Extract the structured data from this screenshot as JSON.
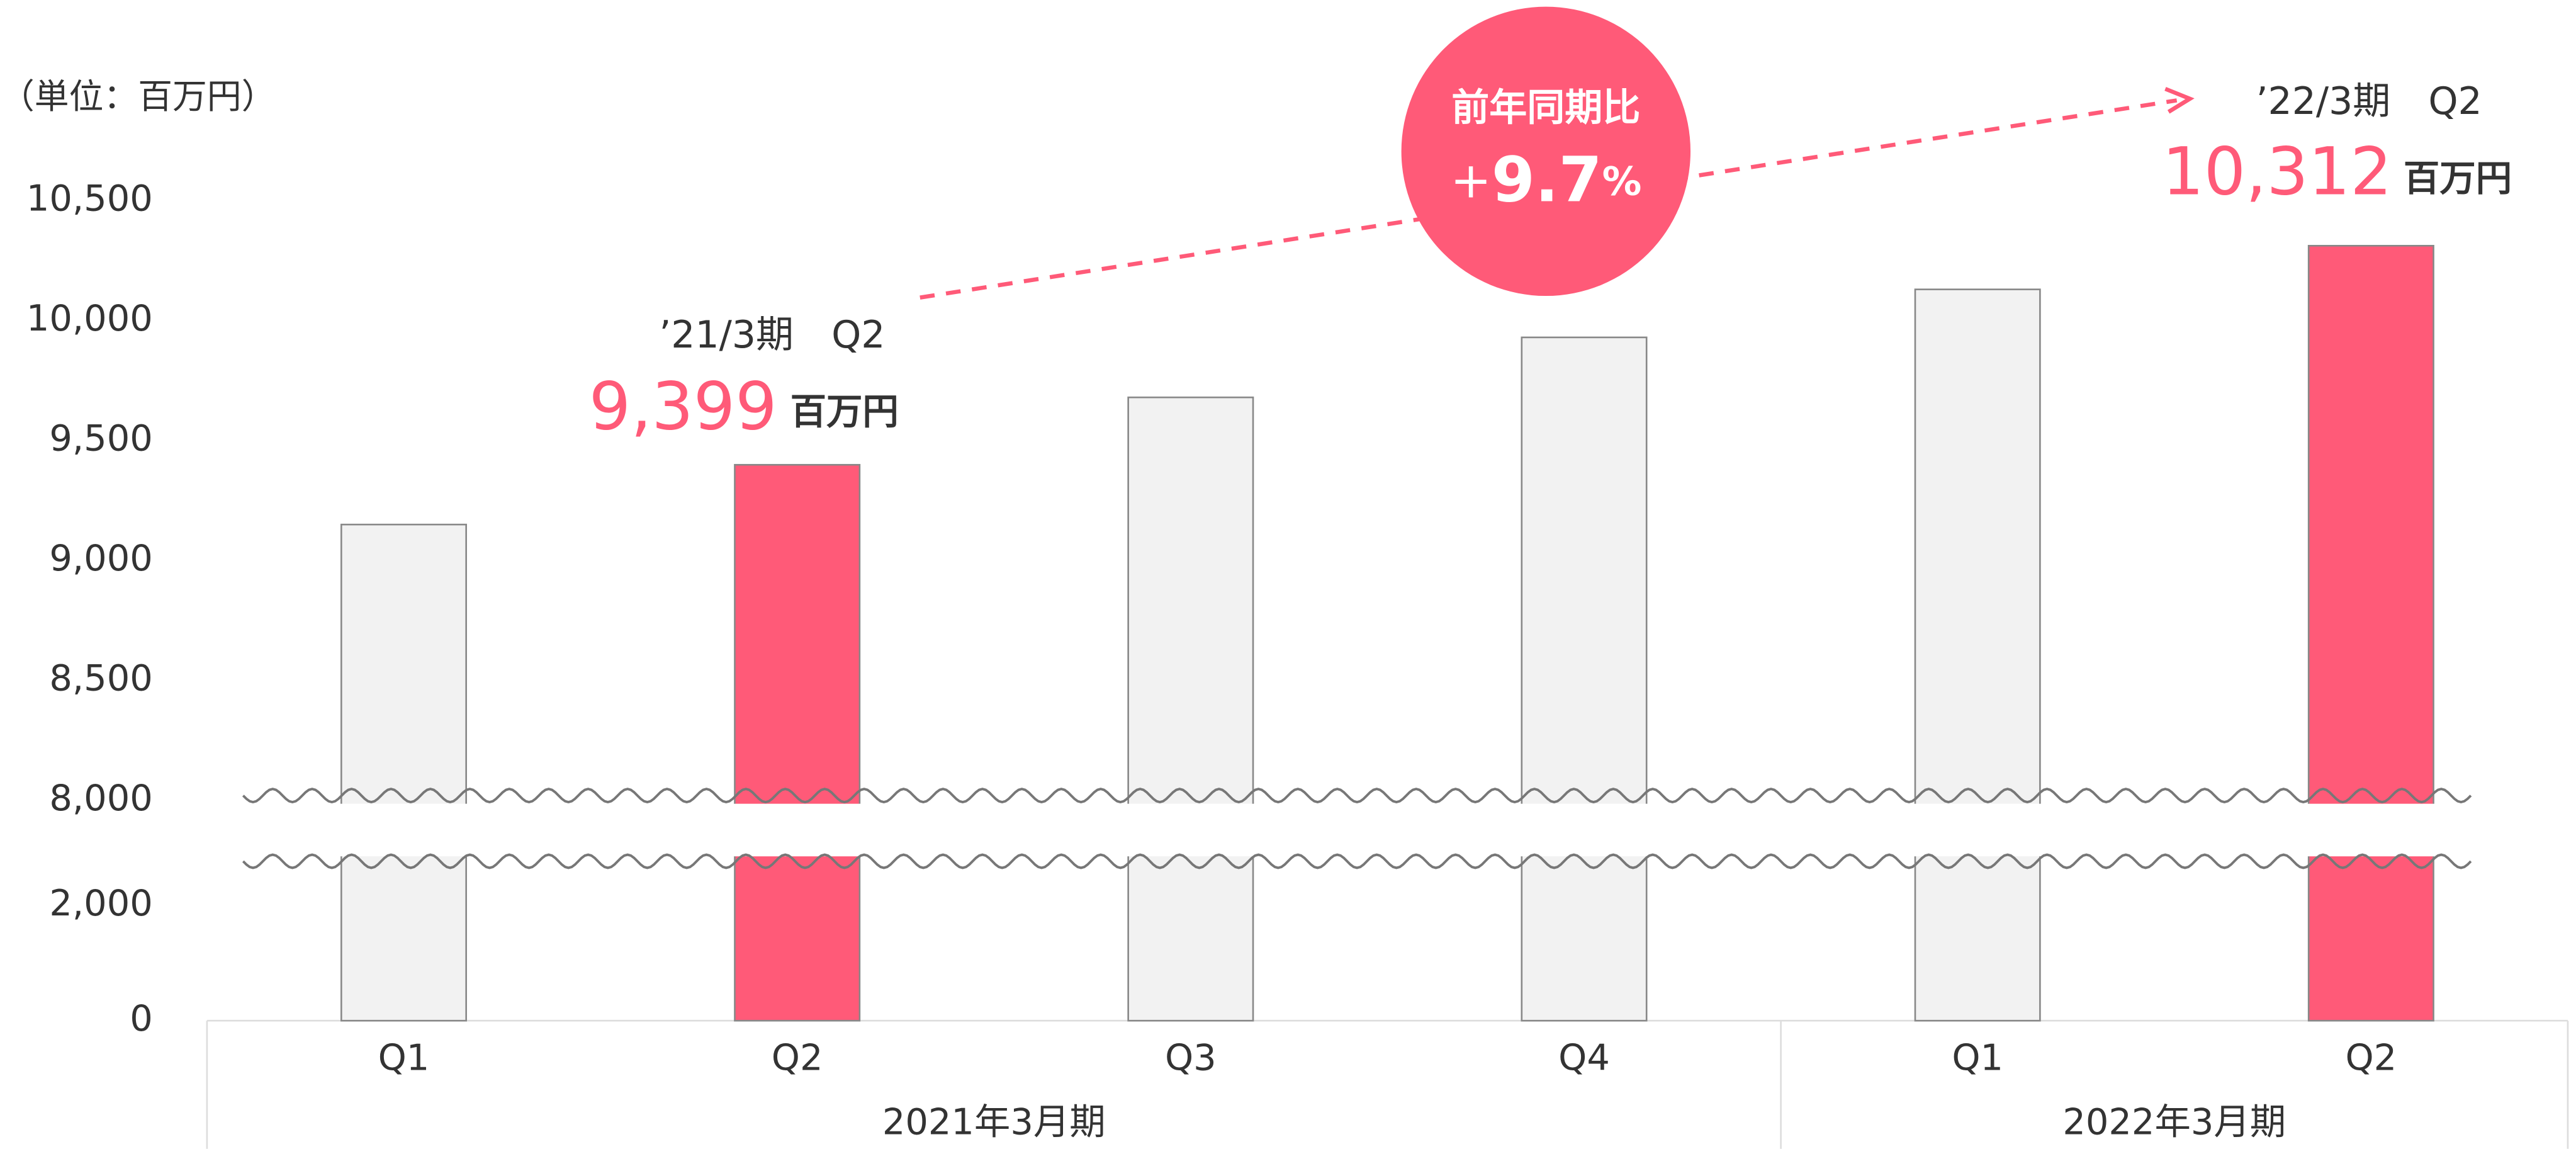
{
  "chart_data": {
    "type": "bar",
    "unit_label": "（単位：百万円）",
    "groups": [
      {
        "name": "2021年3月期",
        "categories": [
          "Q1",
          "Q2",
          "Q3",
          "Q4"
        ]
      },
      {
        "name": "2022年3月期",
        "categories": [
          "Q1",
          "Q2"
        ]
      }
    ],
    "values": [
      9150,
      9399,
      9680,
      9930,
      10130,
      10312
    ],
    "value_labels": [
      null,
      "9,399",
      null,
      null,
      null,
      "10,312"
    ],
    "colors": [
      "#f2f2f2",
      "#ff5a78",
      "#f2f2f2",
      "#f2f2f2",
      "#f2f2f2",
      "#ff5a78"
    ],
    "ylim": [
      0,
      10500
    ],
    "axis_break": [
      2000,
      8000
    ],
    "yticks": [
      0,
      {
        "value": 2000,
        "label": "2,000"
      },
      {
        "value": 8000,
        "label": "8,000"
      },
      {
        "value": 8500,
        "label": "8,500"
      },
      {
        "value": 9000,
        "label": "9,000"
      },
      {
        "value": 9500,
        "label": "9,500"
      },
      {
        "value": 10000,
        "label": "10,000"
      },
      {
        "value": 10500,
        "label": "10,500"
      }
    ],
    "annotations": {
      "previous": {
        "period": "’21/3期　Q2",
        "unit": "百万円"
      },
      "current": {
        "period": "’22/3期　Q2",
        "unit": "百万円"
      },
      "yoy": {
        "label": "前年同期比",
        "sign": "+",
        "value": "9.7",
        "unit": "%"
      }
    }
  }
}
